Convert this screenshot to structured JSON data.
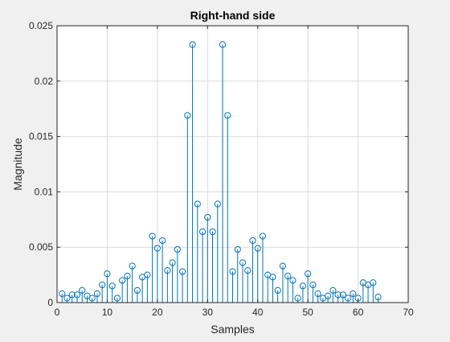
{
  "chart_data": {
    "type": "stem",
    "title": "Right-hand side",
    "xlabel": "Samples",
    "ylabel": "Magnitude",
    "xlim": [
      0,
      70
    ],
    "ylim": [
      0,
      0.025
    ],
    "xticks": [
      0,
      10,
      20,
      30,
      40,
      50,
      60,
      70
    ],
    "yticks": [
      0,
      0.005,
      0.01,
      0.015,
      0.02,
      0.025
    ],
    "xtick_labels": [
      "0",
      "10",
      "20",
      "30",
      "40",
      "50",
      "60",
      "70"
    ],
    "ytick_labels": [
      "0",
      "0.005",
      "0.01",
      "0.015",
      "0.02",
      "0.025"
    ],
    "grid": true,
    "series": [
      {
        "name": "magnitude",
        "color": "#0072BD",
        "x": [
          1,
          2,
          3,
          4,
          5,
          6,
          7,
          8,
          9,
          10,
          11,
          12,
          13,
          14,
          15,
          16,
          17,
          18,
          19,
          20,
          21,
          22,
          23,
          24,
          25,
          26,
          27,
          28,
          29,
          30,
          31,
          32,
          33,
          34,
          35,
          36,
          37,
          38,
          39,
          40,
          41,
          42,
          43,
          44,
          45,
          46,
          47,
          48,
          49,
          50,
          51,
          52,
          53,
          54,
          55,
          56,
          57,
          58,
          59,
          60,
          61,
          62,
          63,
          64
        ],
        "values": [
          0.0008,
          0.0004,
          0.0007,
          0.0007,
          0.0011,
          0.0006,
          0.0004,
          0.0008,
          0.0016,
          0.0026,
          0.0015,
          0.0004,
          0.002,
          0.0024,
          0.0033,
          0.0011,
          0.0023,
          0.0025,
          0.006,
          0.0049,
          0.0056,
          0.0029,
          0.0036,
          0.0048,
          0.0028,
          0.0169,
          0.0233,
          0.0089,
          0.0064,
          0.0077,
          0.0064,
          0.0089,
          0.0233,
          0.0169,
          0.0028,
          0.0048,
          0.0036,
          0.0029,
          0.0056,
          0.0049,
          0.006,
          0.0025,
          0.0023,
          0.0011,
          0.0033,
          0.0024,
          0.002,
          0.0004,
          0.0015,
          0.0026,
          0.0016,
          0.0008,
          0.0004,
          0.0006,
          0.0011,
          0.0007,
          0.0007,
          0.0004,
          0.0008,
          0.0004,
          0.0018,
          0.0016,
          0.0018,
          0.0005
        ]
      }
    ]
  },
  "colors": {
    "figure_bg": "#f0f0f0",
    "axes_bg": "#ffffff",
    "axis_line": "#262626",
    "grid": "#dcdcdc",
    "stem": "#0072BD"
  }
}
